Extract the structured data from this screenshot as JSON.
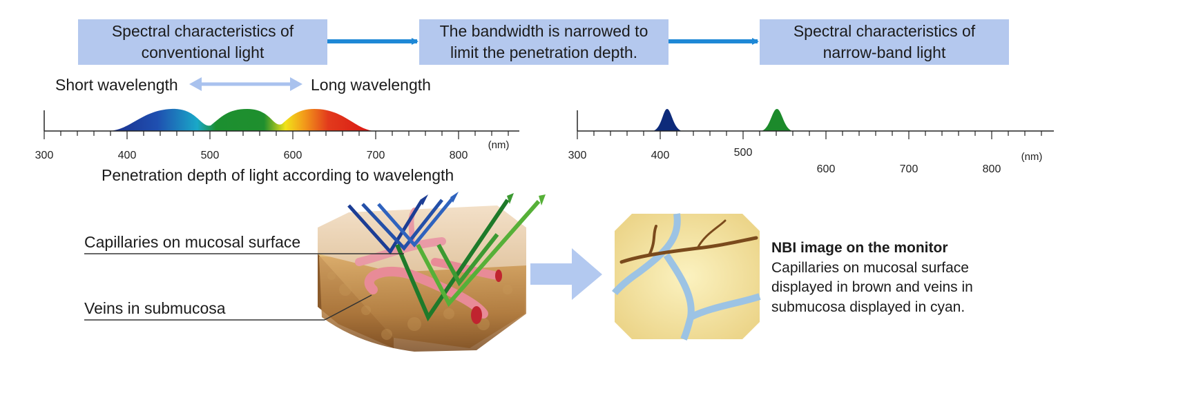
{
  "flow": {
    "box1": [
      "Spectral characteristics of",
      "conventional light"
    ],
    "box2": [
      "The bandwidth is narrowed to",
      "limit the penetration depth."
    ],
    "box3": [
      "Spectral characteristics of",
      "narrow-band light"
    ]
  },
  "wavelength_labels": {
    "short": "Short wavelength",
    "long": "Long wavelength"
  },
  "chart_data": [
    {
      "type": "area",
      "x_ticks": [
        "300",
        "400",
        "500",
        "600",
        "700",
        "800"
      ],
      "unit": "(nm)",
      "xlim": [
        300,
        860
      ],
      "bands": [
        {
          "center": 455,
          "color": "#1f3f9e"
        },
        {
          "center": 545,
          "color": "#1f8f2e"
        },
        {
          "center": 635,
          "color": "#e23a1c"
        }
      ],
      "spectrum_range": [
        378,
        705
      ]
    },
    {
      "type": "area",
      "x_ticks": [
        "300",
        "400",
        "500",
        "600",
        "700",
        "800"
      ],
      "unit": "(nm)",
      "xlim": [
        300,
        875
      ],
      "peaks": [
        {
          "center": 415,
          "color": "#0d2a7a"
        },
        {
          "center": 540,
          "color": "#1c8a2b"
        }
      ]
    }
  ],
  "penetration_title": "Penetration depth of light according to wavelength",
  "callouts": {
    "capillaries": "Capillaries on mucosal surface",
    "veins": "Veins in submucosa"
  },
  "nbi": {
    "title": "NBI image on the monitor",
    "description": [
      "Capillaries on mucosal surface",
      "displayed in brown and veins in",
      "submucosa displayed in cyan."
    ]
  },
  "colors": {
    "box_fill": "#b4c8ee",
    "flow_arrow": "#1e88d6",
    "wavelength_arrow": "#a9c2ee",
    "big_arrow": "#b3c9f0"
  }
}
